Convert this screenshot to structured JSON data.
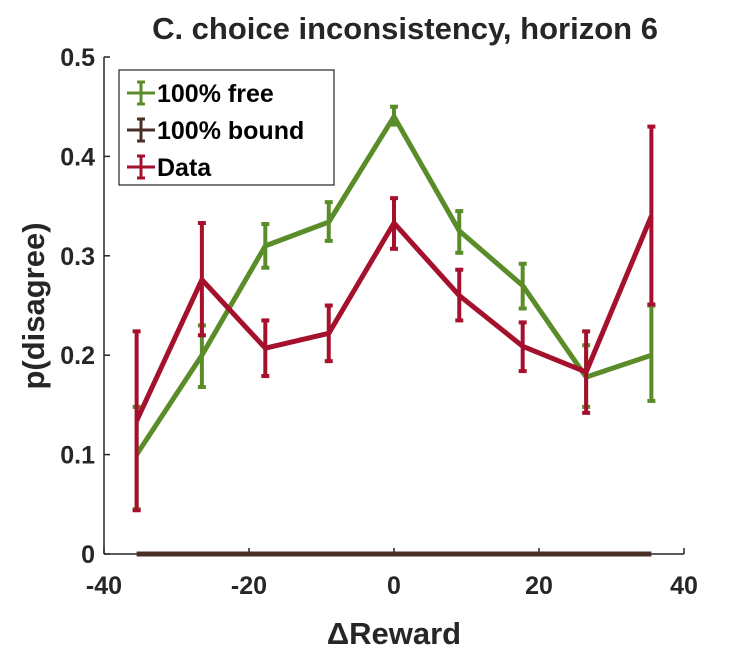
{
  "chart_data": {
    "type": "line",
    "title": "C. choice inconsistency, horizon 6",
    "xlabel": "ΔReward",
    "ylabel": "p(disagree)",
    "xlim": [
      -40,
      40
    ],
    "ylim": [
      0,
      0.5
    ],
    "x_ticks": [
      -40,
      -20,
      0,
      20,
      40
    ],
    "y_ticks": [
      0,
      0.1,
      0.2,
      0.3,
      0.4,
      0.5
    ],
    "x_tick_labels": [
      "-40",
      "-20",
      "0",
      "20",
      "40"
    ],
    "y_tick_labels": [
      "0",
      "0.1",
      "0.2",
      "0.3",
      "0.4",
      "0.5"
    ],
    "grid": false,
    "legend_position": "top-left",
    "x": [
      -35.5,
      -26.5,
      -17.75,
      -9,
      0,
      9,
      17.75,
      26.5,
      35.5
    ],
    "series": [
      {
        "name": "100% free",
        "color": "#5b8c2a",
        "values": [
          0.1,
          0.2,
          0.31,
          0.334,
          0.44,
          0.325,
          0.27,
          0.178,
          0.2
        ],
        "error_low": [
          0.045,
          0.168,
          0.288,
          0.315,
          0.432,
          0.303,
          0.247,
          0.148,
          0.154
        ],
        "error_high": [
          0.148,
          0.23,
          0.332,
          0.354,
          0.45,
          0.345,
          0.292,
          0.21,
          0.25
        ]
      },
      {
        "name": "100% bound",
        "color": "#4a2f27",
        "values": [
          0,
          0,
          0,
          0,
          0,
          0,
          0,
          0,
          0
        ]
      },
      {
        "name": "Data",
        "color": "#a5112c",
        "values": [
          0.134,
          0.276,
          0.207,
          0.222,
          0.333,
          0.26,
          0.209,
          0.183,
          0.34
        ],
        "error_low": [
          0.044,
          0.22,
          0.179,
          0.194,
          0.307,
          0.235,
          0.184,
          0.142,
          0.251
        ],
        "error_high": [
          0.224,
          0.333,
          0.235,
          0.25,
          0.358,
          0.286,
          0.233,
          0.224,
          0.43
        ]
      }
    ]
  }
}
